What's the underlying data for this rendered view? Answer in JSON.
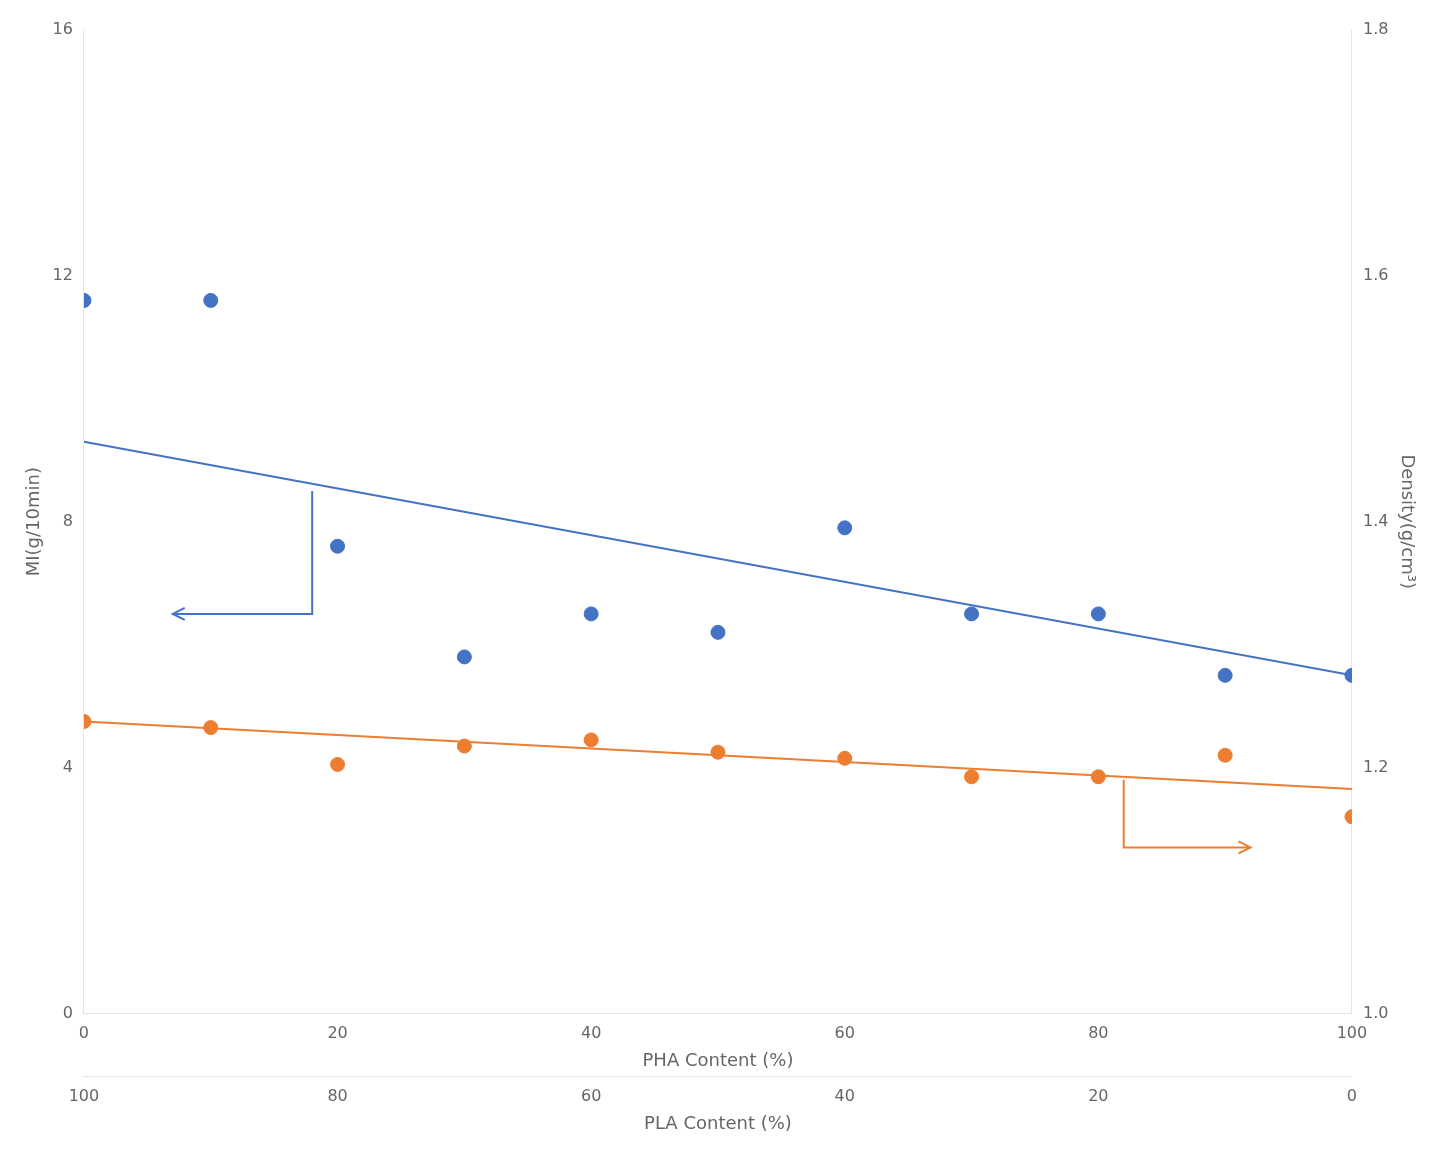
{
  "chart_data": {
    "type": "scatter",
    "xlabel": "PHA Content (%)",
    "ylabel": "MI(g/10min)",
    "y2label": "Density(g/cm³)",
    "x2label": "PLA Content (%)",
    "xlim": [
      0,
      100
    ],
    "xticks": [
      0,
      20,
      40,
      60,
      80,
      100
    ],
    "ylim": [
      0,
      16
    ],
    "yticks": [
      0,
      4,
      8,
      12,
      16
    ],
    "y2lim": [
      1.0,
      1.8
    ],
    "y2ticks": [
      {
        "value": 1.0,
        "label": "1.0"
      },
      1.2,
      1.4,
      1.6,
      1.8
    ],
    "x2lim": [
      0,
      100
    ],
    "x2ticks": [
      {
        "value": 0,
        "label": "100"
      },
      {
        "value": 20,
        "label": "80"
      },
      {
        "value": 40,
        "label": "60"
      },
      {
        "value": 60,
        "label": "40"
      },
      {
        "value": 80,
        "label": "20"
      },
      {
        "value": 100,
        "label": "0"
      }
    ],
    "grid": false,
    "series": [
      {
        "type": "scatter",
        "marker": "circle",
        "color": "#4472C4",
        "x": [
          0,
          10,
          20,
          30,
          40,
          50,
          60,
          70,
          80,
          90,
          100
        ],
        "values": [
          11.6,
          11.6,
          7.6,
          5.8,
          6.5,
          6.2,
          7.9,
          6.5,
          6.5,
          5.5,
          5.5
        ]
      },
      {
        "type": "line",
        "line_style": "solid",
        "color": "#4472C4",
        "x": [
          0,
          100
        ],
        "values": [
          9.3,
          5.5
        ]
      },
      {
        "type": "scatter",
        "marker": "circle",
        "color": "#ED7D31",
        "x": [
          0,
          10,
          20,
          30,
          40,
          50,
          60,
          70,
          80,
          90,
          100
        ],
        "values": [
          4.75,
          4.65,
          4.05,
          4.35,
          4.45,
          4.25,
          4.15,
          3.85,
          3.85,
          4.2,
          3.2
        ]
      },
      {
        "type": "line",
        "line_style": "solid",
        "color": "#ED7D31",
        "x": [
          0,
          100
        ],
        "values": [
          4.75,
          3.65
        ]
      }
    ],
    "annotations": [
      {
        "type": "arrow",
        "x": 7,
        "y": 6.5,
        "from": [
          18,
          8.5
        ],
        "color": "#4472C4"
      },
      {
        "type": "arrow",
        "x": 92,
        "y": 2.7,
        "from": [
          82,
          3.8
        ],
        "color": "#ED7D31"
      }
    ]
  }
}
